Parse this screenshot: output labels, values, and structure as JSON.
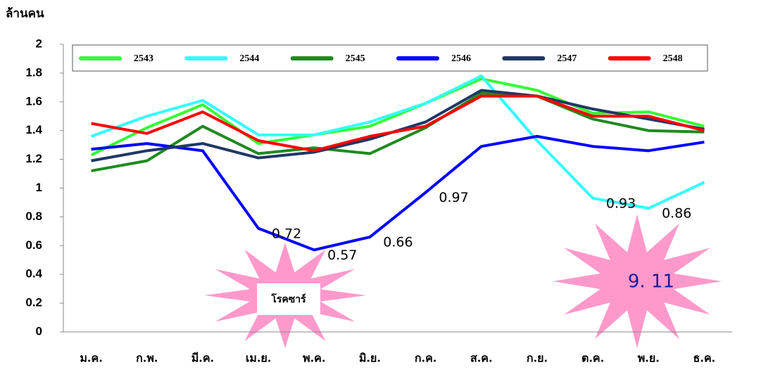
{
  "chart_data": {
    "type": "line",
    "y_label": "ล้านคน",
    "categories": [
      "ม.ค.",
      "ก.พ.",
      "มี.ค.",
      "เม.ย.",
      "พ.ค.",
      "มิ.ย.",
      "ก.ค.",
      "ส.ค.",
      "ก.ย.",
      "ต.ค.",
      "พ.ย.",
      "ธ.ค."
    ],
    "series": [
      {
        "name": "2543",
        "color": "#33ff33",
        "values": [
          1.23,
          1.42,
          1.58,
          1.31,
          1.37,
          1.43,
          1.59,
          1.76,
          1.68,
          1.52,
          1.53,
          1.43
        ]
      },
      {
        "name": "2544",
        "color": "#33ffff",
        "values": [
          1.36,
          1.5,
          1.61,
          1.37,
          1.37,
          1.46,
          1.59,
          1.78,
          1.33,
          0.93,
          0.86,
          1.04
        ],
        "value_labels": [
          null,
          null,
          null,
          null,
          null,
          null,
          null,
          null,
          null,
          "0.93",
          "0.86",
          null
        ]
      },
      {
        "name": "2545",
        "color": "#1f8a1f",
        "values": [
          1.12,
          1.19,
          1.43,
          1.24,
          1.28,
          1.24,
          1.42,
          1.66,
          1.64,
          1.48,
          1.4,
          1.39
        ]
      },
      {
        "name": "2546",
        "color": "#0000ff",
        "values": [
          1.27,
          1.31,
          1.26,
          0.72,
          0.57,
          0.66,
          0.97,
          1.29,
          1.36,
          1.29,
          1.26,
          1.32
        ],
        "value_labels": [
          null,
          null,
          null,
          "0.72",
          "0.57",
          "0.66",
          "0.97",
          null,
          null,
          null,
          null,
          null
        ]
      },
      {
        "name": "2547",
        "color": "#1f3864",
        "values": [
          1.19,
          1.26,
          1.31,
          1.21,
          1.25,
          1.34,
          1.46,
          1.68,
          1.64,
          1.55,
          1.48,
          1.41
        ]
      },
      {
        "name": "2548",
        "color": "#ff0000",
        "values": [
          1.45,
          1.38,
          1.53,
          1.33,
          1.26,
          1.36,
          1.43,
          1.64,
          1.64,
          1.5,
          1.5,
          1.4
        ]
      }
    ],
    "ylim": [
      0,
      2
    ],
    "yticks": [
      0,
      0.2,
      0.4,
      0.6,
      0.8,
      1,
      1.2,
      1.4,
      1.6,
      1.8,
      2
    ],
    "legend": "top",
    "annotations": [
      "โรคซาร์",
      "9. 11"
    ]
  }
}
